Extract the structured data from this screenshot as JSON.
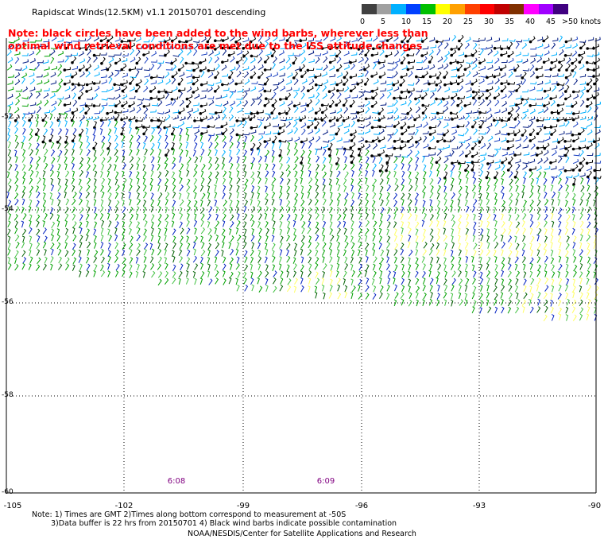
{
  "title": "Rapidscat Winds(12.5KM) v1.1 20150701 descending",
  "note": "Note: black circles have been added to the wind barbs, wherever less than optimal wind retrieval conditions are met due to the ISS attitude changes",
  "legend": {
    "unit": ">50 knots",
    "labels": [
      "0",
      "5",
      "10",
      "15",
      "20",
      "25",
      "30",
      "35",
      "40",
      "45"
    ],
    "colors": [
      "#404040",
      "#a0a0a0",
      "#00b0ff",
      "#0040ff",
      "#00c000",
      "#ffff00",
      "#ffa000",
      "#ff4000",
      "#ff0000",
      "#c00000",
      "#803000",
      "#ff00ff",
      "#a000ff",
      "#400080"
    ]
  },
  "map": {
    "lat_labels": [
      "-52",
      "-54",
      "-56",
      "-58",
      "-60"
    ],
    "lon_labels": [
      "-105",
      "-102",
      "-99",
      "-96",
      "-93",
      "-90"
    ],
    "times": [
      "6:08",
      "6:09"
    ]
  },
  "footer": {
    "line1": "Note: 1) Times are GMT 2)Times along bottom correspond to measurement at -50S",
    "line2": "3)Data buffer is 22 hrs from 20150701 4) Black wind barbs indicate possible contamination",
    "line3": "NOAA/NESDIS/Center for Satellite Applications and Research"
  }
}
